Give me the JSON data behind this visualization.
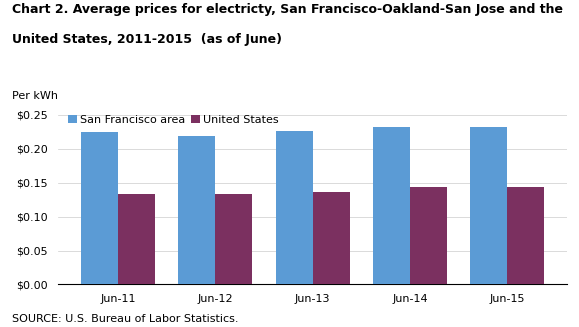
{
  "title_line1": "Chart 2. Average prices for electricty, San Francisco-Oakland-San Jose and the",
  "title_line2": "United States, 2011-2015  (as of June)",
  "ylabel": "Per kWh",
  "source": "SOURCE: U.S. Bureau of Labor Statistics.",
  "categories": [
    "Jun-11",
    "Jun-12",
    "Jun-13",
    "Jun-14",
    "Jun-15"
  ],
  "sf_values": [
    0.225,
    0.219,
    0.226,
    0.232,
    0.232
  ],
  "us_values": [
    0.133,
    0.134,
    0.136,
    0.143,
    0.143
  ],
  "sf_color": "#5B9BD5",
  "us_color": "#7B3060",
  "sf_label": "San Francisco area",
  "us_label": "United States",
  "ylim": [
    0,
    0.265
  ],
  "yticks": [
    0.0,
    0.05,
    0.1,
    0.15,
    0.2,
    0.25
  ],
  "background_color": "#ffffff",
  "bar_width": 0.38,
  "title_fontsize": 9,
  "tick_fontsize": 8,
  "legend_fontsize": 8,
  "ylabel_fontsize": 8,
  "source_fontsize": 8
}
